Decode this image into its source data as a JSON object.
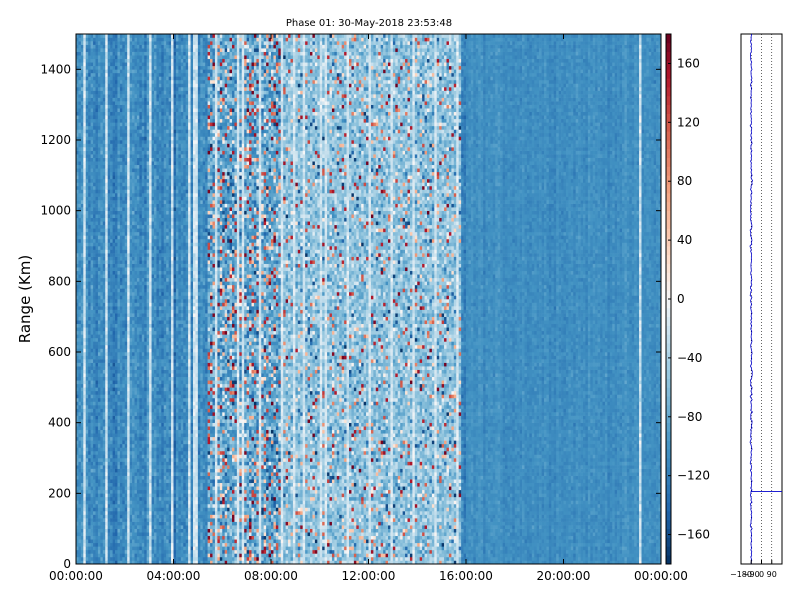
{
  "chart_data": [
    {
      "type": "heatmap",
      "title": "Phase 01: 30-May-2018 23:53:48",
      "ylabel": "Range (Km)",
      "xlabel": "",
      "xlim": [
        "00:00:00",
        "24:00:00"
      ],
      "ylim": [
        0,
        1500
      ],
      "x_tick_labels": [
        "00:00:00",
        "04:00:00",
        "08:00:00",
        "12:00:00",
        "16:00:00",
        "20:00:00",
        "00:00:00"
      ],
      "y_tick_labels": [
        "0",
        "200",
        "400",
        "600",
        "800",
        "1000",
        "1200",
        "1400"
      ],
      "colormap": "RdBu_r",
      "color_range": [
        -180,
        180
      ],
      "colorbar_tick_labels": [
        "160",
        "120",
        "80",
        "40",
        "0",
        "−40",
        "−80",
        "−120",
        "−160"
      ],
      "pattern": {
        "background_level": -110,
        "noisy_intervals_hours": [
          [
            5.4,
            8.4
          ],
          [
            8.4,
            15.8
          ]
        ],
        "quiet_after_hours": 16.0
      }
    },
    {
      "type": "line",
      "title": "",
      "xlabel": "",
      "ylabel": "",
      "xlim": [
        -180,
        180
      ],
      "ylim": [
        0,
        1500
      ],
      "x_tick_labels": [
        "−180",
        "−90",
        "0",
        "90"
      ],
      "series_color": "#0000cc",
      "profile": {
        "mean_phase": -90,
        "spike_range_km": 205,
        "spike_value": 180
      }
    }
  ],
  "colors": {
    "negative_extreme": "#08306b",
    "zero": "#f7f7f7",
    "positive_extreme": "#67001f"
  }
}
